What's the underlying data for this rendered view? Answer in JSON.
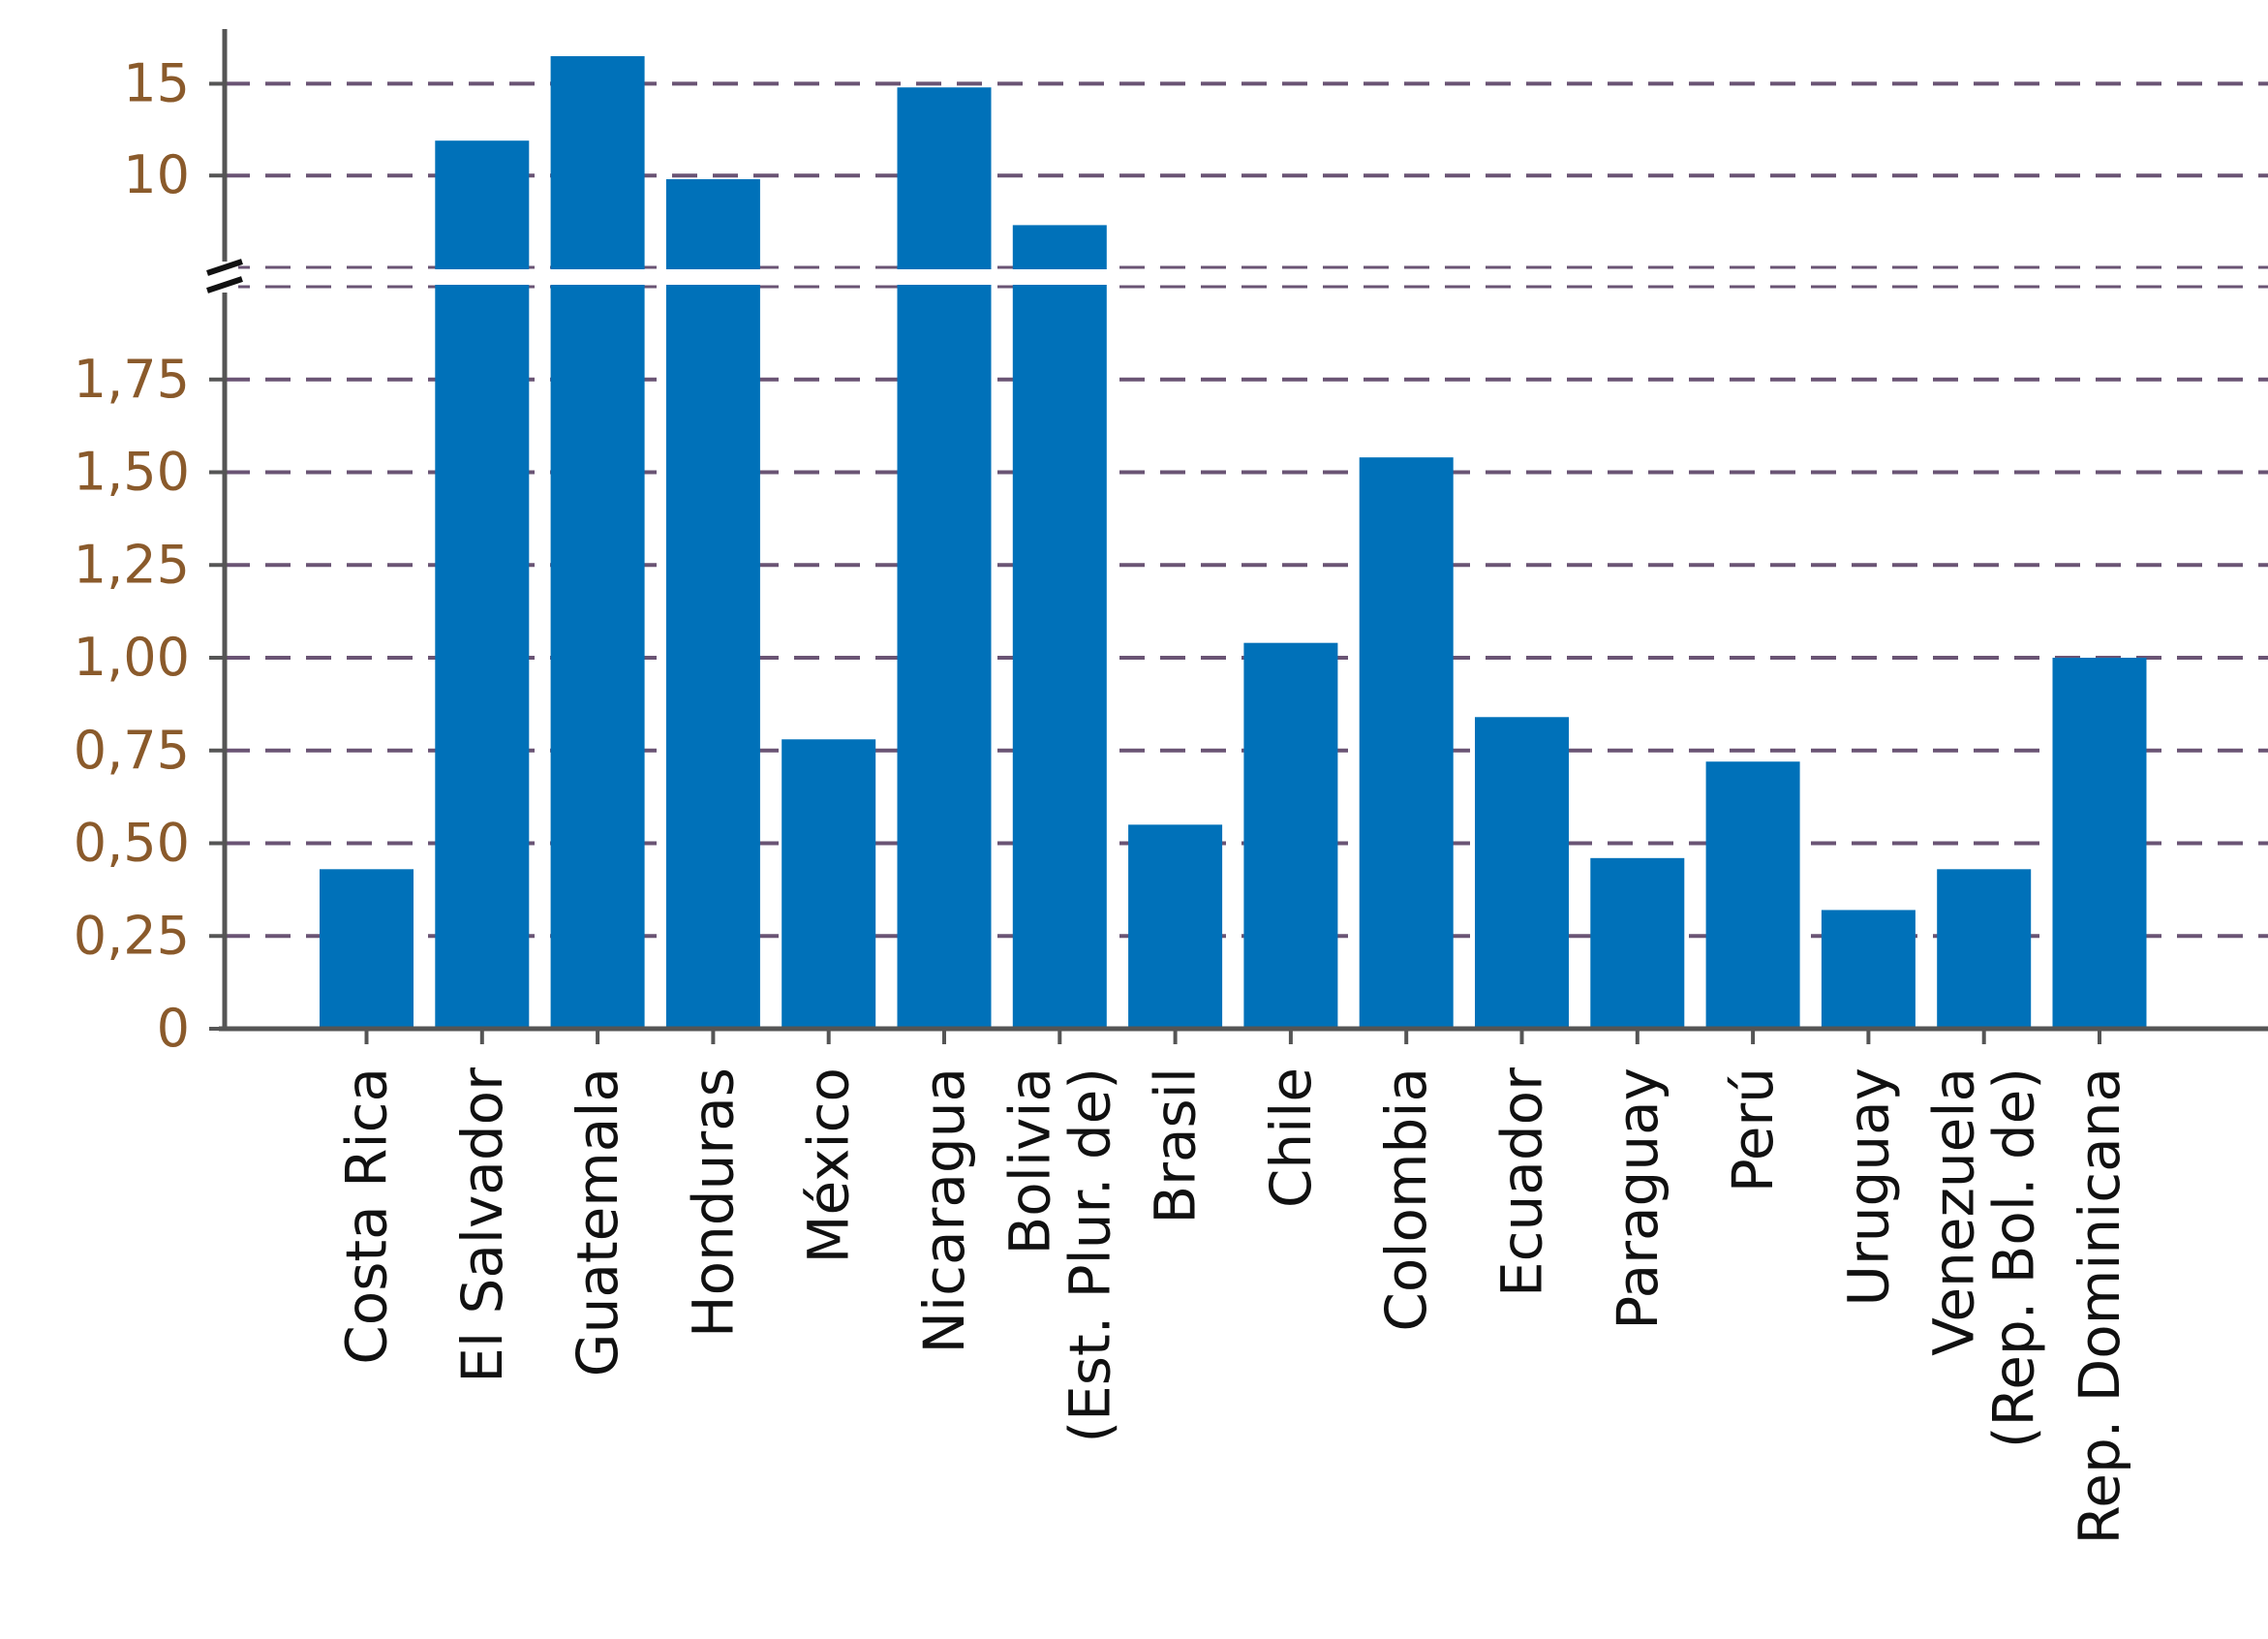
{
  "chart_data": {
    "type": "bar",
    "title": "",
    "xlabel": "",
    "ylabel": "",
    "broken_axis": true,
    "ylim_lower": [
      0,
      2.0
    ],
    "ylim_upper": [
      5,
      16.5
    ],
    "yticks_lower": [
      0,
      0.25,
      0.5,
      0.75,
      1.0,
      1.25,
      1.5,
      1.75
    ],
    "yticks_lower_labels": [
      "0",
      "0,25",
      "0,50",
      "0,75",
      "1,00",
      "1,25",
      "1,50",
      "1,75"
    ],
    "yticks_upper": [
      10,
      15
    ],
    "yticks_upper_labels": [
      "10",
      "15"
    ],
    "grid": true,
    "grid_style": "dashed",
    "legend": "none",
    "categories": [
      "Costa Rica",
      "El Salvador",
      "Guatemala",
      "Honduras",
      "México",
      "Nicaragua",
      "Bolivia (Est. Plur. de)",
      "Brasil",
      "Chile",
      "Colombia",
      "Ecuador",
      "Paraguay",
      "Perú",
      "Uruguay",
      "Venezuela (Rep. Bol. de)",
      "Rep. Dominicana"
    ],
    "category_lines": [
      [
        "Costa Rica"
      ],
      [
        "El Salvador"
      ],
      [
        "Guatemala"
      ],
      [
        "Honduras"
      ],
      [
        "México"
      ],
      [
        "Nicaragua"
      ],
      [
        "Bolivia",
        "(Est. Plur. de)"
      ],
      [
        "Brasil"
      ],
      [
        "Chile"
      ],
      [
        "Colombia"
      ],
      [
        "Ecuador"
      ],
      [
        "Paraguay"
      ],
      [
        "Perú"
      ],
      [
        "Uruguay"
      ],
      [
        "Venezuela",
        "(Rep. Bol. de)"
      ],
      [
        "Rep. Dominicana"
      ]
    ],
    "values": [
      0.43,
      11.9,
      16.5,
      9.8,
      0.78,
      14.8,
      7.3,
      0.55,
      1.04,
      1.54,
      0.84,
      0.46,
      0.72,
      0.32,
      0.43,
      1.0
    ],
    "colors": {
      "bar": "#0071b9",
      "grid": "#6a5474",
      "axis": "#555555",
      "tick_text": "#8a5a2b"
    }
  }
}
